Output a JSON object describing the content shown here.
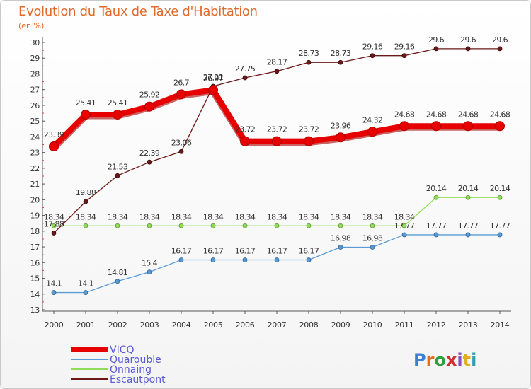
{
  "title": "Evolution du Taux de Taxe d'Habitation",
  "subtitle": "(en %)",
  "logo": "Proxiti",
  "chart_data": {
    "type": "line",
    "title": "Evolution du Taux de Taxe d'Habitation",
    "subtitle": "(en %)",
    "xlabel": "",
    "ylabel": "",
    "x": [
      2000,
      2001,
      2002,
      2003,
      2004,
      2005,
      2006,
      2007,
      2008,
      2009,
      2010,
      2011,
      2012,
      2013,
      2014
    ],
    "ylim": [
      13,
      30
    ],
    "yticks": [
      13,
      14,
      15,
      16,
      17,
      18,
      19,
      20,
      21,
      22,
      23,
      24,
      25,
      26,
      27,
      28,
      29,
      30
    ],
    "grid": false,
    "legend_position": "bottom-left",
    "series": [
      {
        "name": "Escautpont",
        "color": "#6b1818",
        "values": [
          17.88,
          19.88,
          21.53,
          22.39,
          23.06,
          27.21,
          27.75,
          28.17,
          28.73,
          28.73,
          29.16,
          29.16,
          29.6,
          29.6,
          29.6
        ],
        "labels": [
          "17.88",
          "19.88",
          "21.53",
          "22.39",
          "23.06",
          "27.21",
          "27.75",
          "28.17",
          "28.73",
          "28.73",
          "29.16",
          "29.16",
          "29.6",
          "29.6",
          "29.6"
        ]
      },
      {
        "name": "Onnaing",
        "color": "#8fdc5a",
        "values": [
          18.34,
          18.34,
          18.34,
          18.34,
          18.34,
          18.34,
          18.34,
          18.34,
          18.34,
          18.34,
          18.34,
          18.34,
          20.14,
          20.14,
          20.14
        ],
        "labels": [
          "18.34",
          "18.34",
          "18.34",
          "18.34",
          "18.34",
          "18.34",
          "18.34",
          "18.34",
          "18.34",
          "18.34",
          "18.34",
          "18.34",
          "20.14",
          "20.14",
          "20.14"
        ]
      },
      {
        "name": "Quarouble",
        "color": "#5b9bd5",
        "values": [
          14.1,
          14.1,
          14.81,
          15.4,
          16.17,
          16.17,
          16.17,
          16.17,
          16.17,
          16.98,
          16.98,
          17.77,
          17.77,
          17.77,
          17.77
        ],
        "labels": [
          "14.1",
          "14.1",
          "14.81",
          "15.4",
          "16.17",
          "16.17",
          "16.17",
          "16.17",
          "16.17",
          "16.98",
          "16.98",
          "17.77",
          "17.77",
          "17.77",
          "17.77"
        ]
      },
      {
        "name": "VICQ",
        "color": "#e60000",
        "values": [
          23.39,
          25.41,
          25.41,
          25.92,
          26.7,
          26.97,
          23.72,
          23.72,
          23.72,
          23.96,
          24.32,
          24.68,
          24.68,
          24.68,
          24.68
        ],
        "labels": [
          "23.39",
          "25.41",
          "25.41",
          "25.92",
          "26.7",
          "26.97",
          "23.72",
          "23.72",
          "23.72",
          "23.96",
          "24.32",
          "24.68",
          "24.68",
          "24.68",
          "24.68"
        ]
      }
    ],
    "legend": [
      "VICQ",
      "Quarouble",
      "Onnaing",
      "Escautpont"
    ]
  }
}
